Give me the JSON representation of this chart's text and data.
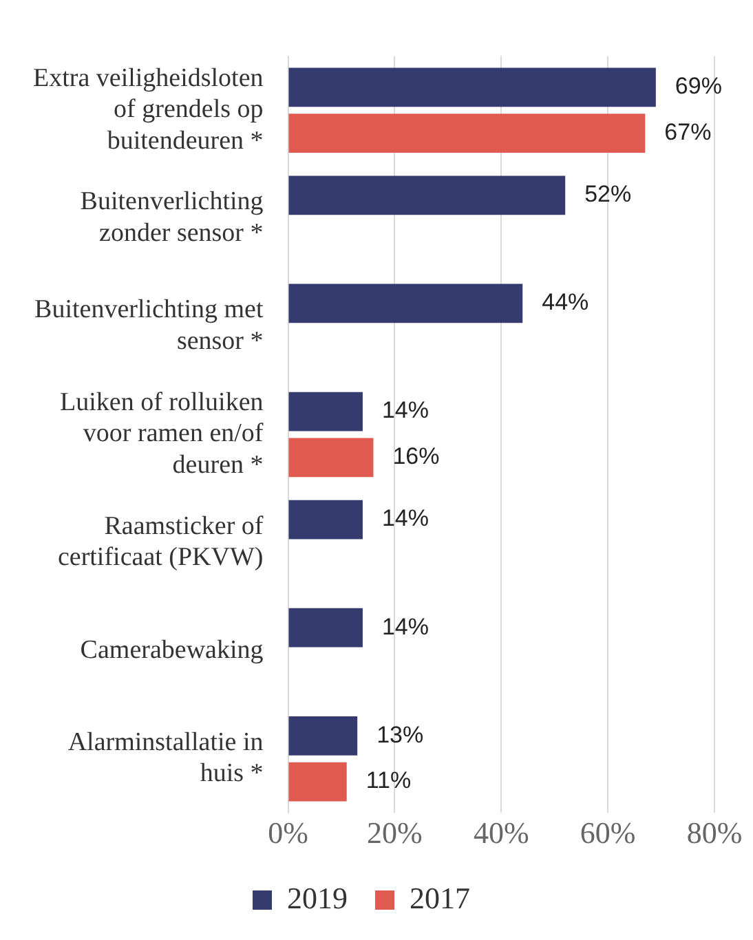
{
  "chart_data": {
    "type": "bar",
    "orientation": "horizontal",
    "categories": [
      "Extra veiligheidsloten\nof grendels op\nbuitendeuren *",
      "Buitenverlichting\nzonder sensor *",
      "Buitenverlichting met\nsensor *",
      "Luiken of rolluiken\nvoor ramen en/of\ndeuren *",
      "Raamsticker of\ncertificaat (PKVW)",
      "Camerabewaking",
      "Alarminstallatie in\nhuis *"
    ],
    "series": [
      {
        "name": "2019",
        "color": "#353b6e",
        "values": [
          69,
          52,
          44,
          14,
          14,
          14,
          13
        ],
        "value_labels": [
          "69%",
          "52%",
          "44%",
          "14%",
          "14%",
          "14%",
          "13%"
        ]
      },
      {
        "name": "2017",
        "color": "#e05a4f",
        "values": [
          67,
          null,
          null,
          16,
          null,
          null,
          11
        ],
        "value_labels": [
          "67%",
          null,
          null,
          "16%",
          null,
          null,
          "11%"
        ]
      }
    ],
    "xlim": [
      0,
      80
    ],
    "xticks": [
      {
        "value": 0,
        "label": "0%"
      },
      {
        "value": 20,
        "label": "20%"
      },
      {
        "value": 40,
        "label": "40%"
      },
      {
        "value": 60,
        "label": "60%"
      },
      {
        "value": 80,
        "label": "80%"
      }
    ],
    "grid": "x",
    "legend": "bottom"
  }
}
